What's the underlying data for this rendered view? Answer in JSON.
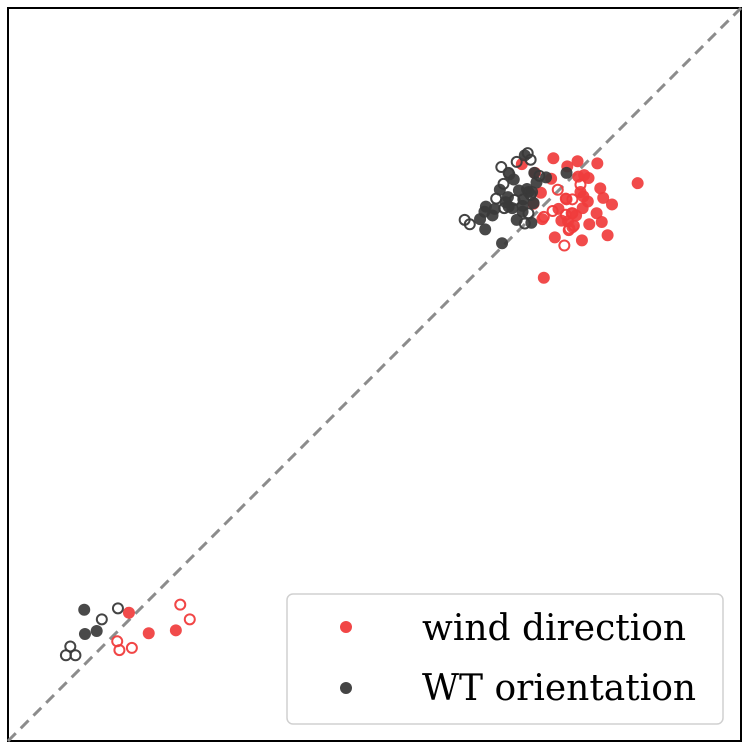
{
  "chart_data": {
    "type": "scatter",
    "title": "",
    "xlabel": "",
    "ylabel": "",
    "xlim": [
      0,
      100
    ],
    "ylim": [
      0,
      100
    ],
    "grid": false,
    "legend_position": "bottom-right",
    "reference_line": {
      "style": "dashed",
      "color": "#8c8c8c",
      "from": [
        0,
        0
      ],
      "to": [
        100,
        100
      ]
    },
    "series": [
      {
        "name": "wind direction",
        "color": "#f03c3c",
        "filled": [
          [
            16.5,
            17.5
          ],
          [
            19.2,
            14.7
          ],
          [
            22.9,
            15.1
          ],
          [
            70.1,
            78.7
          ],
          [
            71.9,
            77.5
          ],
          [
            73.1,
            63.2
          ],
          [
            74.4,
            79.5
          ],
          [
            76.3,
            78.4
          ],
          [
            77.7,
            79.1
          ],
          [
            78.4,
            72.7
          ],
          [
            78.6,
            77.2
          ],
          [
            85.9,
            76.1
          ],
          [
            80.4,
            78.8
          ],
          [
            76.9,
            72.0
          ],
          [
            78.5,
            74.3
          ],
          [
            77.8,
            77.0
          ],
          [
            75.5,
            71.0
          ],
          [
            81.8,
            69.0
          ],
          [
            81.0,
            70.8
          ],
          [
            74.6,
            68.7
          ],
          [
            72.9,
            71.2
          ],
          [
            71.7,
            73.3
          ],
          [
            72.7,
            74.8
          ],
          [
            74.1,
            76.7
          ],
          [
            76.2,
            73.9
          ],
          [
            75.1,
            72.6
          ],
          [
            76.4,
            70.9
          ],
          [
            78.1,
            74.9
          ],
          [
            77.5,
            71.7
          ],
          [
            78.3,
            68.3
          ],
          [
            79.3,
            70.5
          ],
          [
            79.1,
            73.6
          ],
          [
            80.3,
            72.0
          ],
          [
            81.2,
            74.1
          ],
          [
            79.2,
            76.8
          ],
          [
            80.8,
            75.4
          ],
          [
            82.4,
            73.2
          ],
          [
            77.0,
            70.1
          ]
        ],
        "hollow": [
          [
            15.2,
            12.4
          ],
          [
            16.9,
            12.7
          ],
          [
            14.9,
            13.6
          ],
          [
            23.5,
            18.6
          ],
          [
            24.8,
            16.6
          ],
          [
            75.0,
            75.2
          ],
          [
            76.1,
            74.0
          ],
          [
            78.1,
            75.9
          ],
          [
            77.0,
            72.0
          ],
          [
            77.2,
            70.3
          ],
          [
            73.1,
            71.5
          ],
          [
            77.0,
            73.9
          ],
          [
            76.5,
            69.7
          ],
          [
            76.1,
            71.8
          ],
          [
            75.9,
            67.6
          ],
          [
            76.6,
            69.9
          ],
          [
            74.3,
            72.3
          ]
        ]
      },
      {
        "name": "WT orientation",
        "color": "#3a3a3a",
        "filled": [
          [
            10.4,
            17.9
          ],
          [
            10.5,
            14.6
          ],
          [
            12.1,
            15.0
          ],
          [
            68.3,
            72.9
          ],
          [
            68.2,
            74.2
          ],
          [
            76.2,
            77.5
          ],
          [
            69.4,
            71.1
          ],
          [
            71.7,
            73.4
          ],
          [
            71.0,
            74.9
          ],
          [
            70.2,
            73.0
          ],
          [
            64.4,
            71.2
          ],
          [
            65.2,
            72.9
          ],
          [
            67.1,
            75.2
          ],
          [
            68.4,
            77.3
          ],
          [
            70.5,
            79.9
          ],
          [
            71.8,
            77.5
          ],
          [
            73.4,
            76.9
          ],
          [
            67.9,
            73.5
          ],
          [
            65.1,
            69.8
          ],
          [
            70.8,
            75.3
          ],
          [
            69.7,
            75.1
          ],
          [
            67.4,
            67.9
          ],
          [
            66.1,
            71.7
          ],
          [
            70.3,
            73.9
          ],
          [
            71.5,
            74.9
          ],
          [
            72.1,
            76.2
          ],
          [
            65.0,
            72.2
          ],
          [
            69.0,
            76.6
          ],
          [
            70.2,
            72.2
          ],
          [
            71.4,
            70.7
          ],
          [
            66.4,
            72.6
          ],
          [
            68.8,
            72.7
          ]
        ],
        "hollow": [
          [
            7.9,
            11.7
          ],
          [
            8.5,
            12.9
          ],
          [
            9.2,
            11.7
          ],
          [
            12.8,
            16.6
          ],
          [
            15.0,
            18.1
          ],
          [
            67.3,
            78.3
          ],
          [
            68.3,
            77.5
          ],
          [
            69.4,
            79.0
          ],
          [
            70.9,
            80.2
          ],
          [
            71.3,
            79.3
          ],
          [
            72.5,
            77.1
          ],
          [
            71.0,
            72.0
          ],
          [
            67.7,
            72.7
          ],
          [
            69.1,
            73.8
          ],
          [
            62.3,
            71.1
          ],
          [
            63.0,
            70.5
          ],
          [
            67.6,
            76.0
          ],
          [
            70.5,
            70.6
          ],
          [
            71.3,
            74.5
          ],
          [
            66.6,
            74.0
          ]
        ]
      }
    ]
  }
}
